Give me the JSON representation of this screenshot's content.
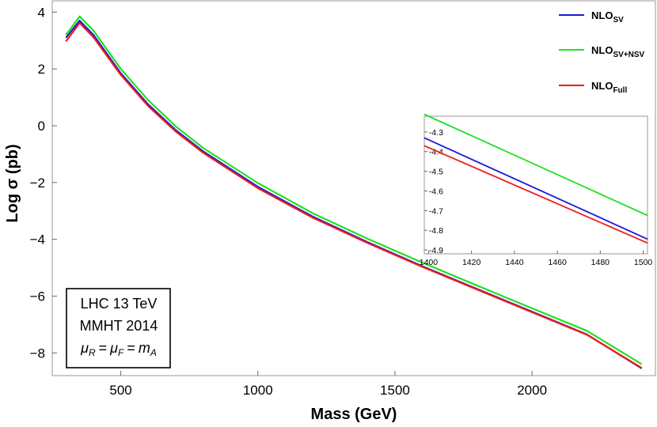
{
  "chart_data": {
    "type": "line",
    "xlabel": "Mass (GeV)",
    "ylabel": "Log σ (pb)",
    "xlim": [
      250,
      2450
    ],
    "ylim": [
      -8.8,
      4.4
    ],
    "xticks": [
      "500",
      "1000",
      "1500",
      "2000"
    ],
    "xtick_values": [
      500,
      1000,
      1500,
      2000
    ],
    "yticks": [
      "−8",
      "−6",
      "−4",
      "−2",
      "0",
      "2",
      "4"
    ],
    "ytick_values": [
      -8,
      -6,
      -4,
      -2,
      0,
      2,
      4
    ],
    "grid": false,
    "legend_position": "top-right",
    "series": [
      {
        "name": "NLO",
        "subscript": "SV",
        "color": "#1a1adb",
        "x": [
          300,
          350,
          400,
          500,
          600,
          700,
          800,
          1000,
          1200,
          1400,
          1600,
          1800,
          2000,
          2200,
          2400
        ],
        "y": [
          3.1,
          3.7,
          3.2,
          1.85,
          0.75,
          -0.15,
          -0.9,
          -2.15,
          -3.2,
          -4.1,
          -4.95,
          -5.75,
          -6.55,
          -7.35,
          -8.55
        ]
      },
      {
        "name": "NLO",
        "subscript": "SV+NSV",
        "color": "#22e022",
        "x": [
          300,
          350,
          400,
          500,
          600,
          700,
          800,
          1000,
          1200,
          1400,
          1600,
          1800,
          2000,
          2200,
          2400
        ],
        "y": [
          3.2,
          3.85,
          3.35,
          2.0,
          0.9,
          -0.02,
          -0.78,
          -2.02,
          -3.08,
          -3.98,
          -4.82,
          -5.63,
          -6.43,
          -7.22,
          -8.4
        ]
      },
      {
        "name": "NLO",
        "subscript": "Full",
        "color": "#ee1c1c",
        "x": [
          300,
          350,
          400,
          500,
          600,
          700,
          800,
          1000,
          1200,
          1400,
          1600,
          1800,
          2000,
          2200,
          2400
        ],
        "y": [
          2.97,
          3.62,
          3.12,
          1.79,
          0.69,
          -0.2,
          -0.95,
          -2.2,
          -3.24,
          -4.13,
          -4.97,
          -5.77,
          -6.57,
          -7.36,
          -8.53
        ]
      }
    ],
    "inset": {
      "type": "line",
      "xlim": [
        1398,
        1502
      ],
      "ylim": [
        -4.92,
        -4.22
      ],
      "xticks": [
        "1400",
        "1420",
        "1440",
        "1460",
        "1480",
        "1500"
      ],
      "xtick_values": [
        1400,
        1420,
        1440,
        1460,
        1480,
        1500
      ],
      "yticks": [
        "-4.3",
        "-4.4",
        "-4.5",
        "-4.6",
        "-4.7",
        "-4.8",
        "-4.9"
      ],
      "ytick_values": [
        -4.3,
        -4.4,
        -4.5,
        -4.6,
        -4.7,
        -4.8,
        -4.9
      ],
      "series": [
        {
          "name": "NLO_SV",
          "color": "#1a1adb",
          "x": [
            1398,
            1502
          ],
          "y": [
            -4.33,
            -4.845
          ]
        },
        {
          "name": "NLO_SV+NSV",
          "color": "#22e022",
          "x": [
            1398,
            1502
          ],
          "y": [
            -4.21,
            -4.725
          ]
        },
        {
          "name": "NLO_Full",
          "color": "#ee1c1c",
          "x": [
            1398,
            1502
          ],
          "y": [
            -4.37,
            -4.865
          ]
        }
      ]
    },
    "info_box": {
      "line1": "LHC 13 TeV",
      "line2": "MMHT 2014",
      "mu_r": "μ",
      "sub_r": "R",
      "mu_f": "μ",
      "sub_f": "F",
      "m": "m",
      "sub_a": "A",
      "eq": "="
    }
  }
}
